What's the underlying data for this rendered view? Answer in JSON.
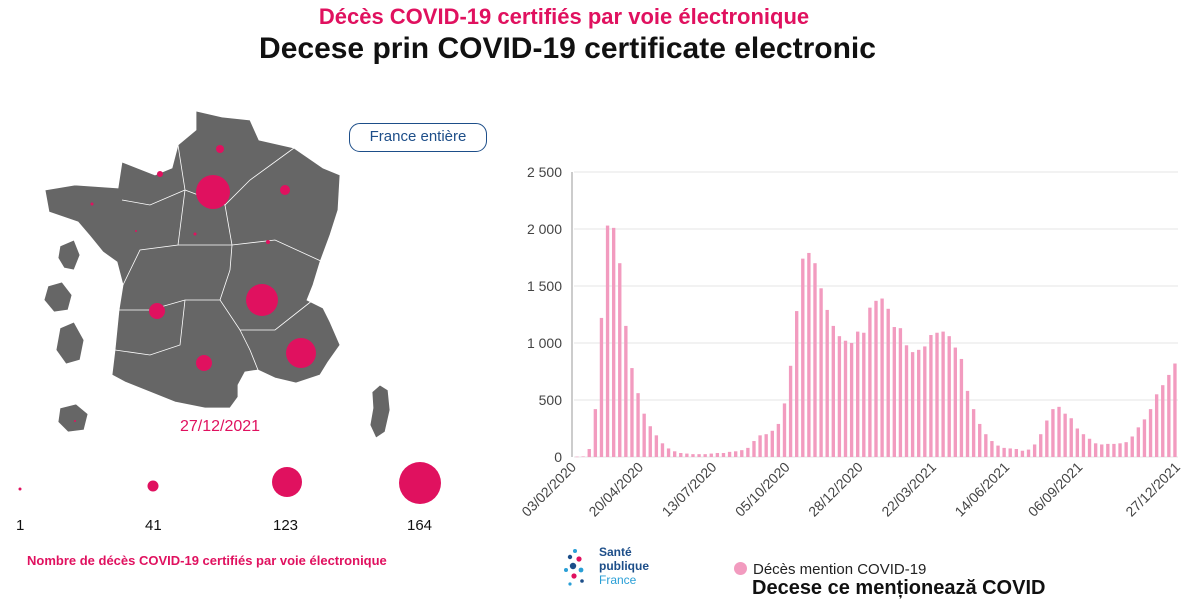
{
  "title_fr": "Décès COVID-19 certifiés par voie électronique",
  "title_ro": "Decese prin COVID-19 certificate electronic",
  "button_label": "France entière",
  "map": {
    "date": "27/12/2021",
    "land_color": "#666666",
    "bubble_color": "#e0115f"
  },
  "size_legend": {
    "values": [
      "1",
      "41",
      "123",
      "164"
    ],
    "caption": "Nombre de décès COVID-19 certifiés par voie électronique"
  },
  "logo": {
    "line1": "Santé",
    "line2": "publique",
    "line3": "France"
  },
  "legend": {
    "series_fr": "Décès mention COVID-19",
    "series_ro": "Decese ce menționează COVID"
  },
  "chart_data": {
    "type": "bar",
    "color": "#f29bbf",
    "ylim": [
      0,
      2500
    ],
    "yticks": [
      0,
      500,
      1000,
      1500,
      2000,
      2500
    ],
    "ytick_labels": [
      "0",
      "500",
      "1 000",
      "1 500",
      "2 000",
      "2 500"
    ],
    "xtick_labels": [
      "03/02/2020",
      "20/04/2020",
      "13/07/2020",
      "05/10/2020",
      "28/12/2020",
      "22/03/2021",
      "14/06/2021",
      "06/09/2021",
      "27/12/2021"
    ],
    "xtick_weeks": [
      0,
      11,
      23,
      35,
      47,
      59,
      71,
      83,
      99
    ],
    "weeks": [
      {
        "v": 3
      },
      {
        "v": 5
      },
      {
        "v": 70
      },
      {
        "v": 420
      },
      {
        "v": 1220
      },
      {
        "v": 2030
      },
      {
        "v": 2010
      },
      {
        "v": 1700
      },
      {
        "v": 1150
      },
      {
        "v": 780
      },
      {
        "v": 560
      },
      {
        "v": 380
      },
      {
        "v": 270
      },
      {
        "v": 190
      },
      {
        "v": 120
      },
      {
        "v": 75
      },
      {
        "v": 50
      },
      {
        "v": 35
      },
      {
        "v": 30
      },
      {
        "v": 25
      },
      {
        "v": 25
      },
      {
        "v": 25
      },
      {
        "v": 30
      },
      {
        "v": 35
      },
      {
        "v": 35
      },
      {
        "v": 45
      },
      {
        "v": 50
      },
      {
        "v": 60
      },
      {
        "v": 80
      },
      {
        "v": 140
      },
      {
        "v": 190
      },
      {
        "v": 200
      },
      {
        "v": 230
      },
      {
        "v": 290
      },
      {
        "v": 470
      },
      {
        "v": 800
      },
      {
        "v": 1280
      },
      {
        "v": 1740
      },
      {
        "v": 1790
      },
      {
        "v": 1700
      },
      {
        "v": 1480
      },
      {
        "v": 1290
      },
      {
        "v": 1150
      },
      {
        "v": 1060
      },
      {
        "v": 1020
      },
      {
        "v": 1000
      },
      {
        "v": 1100
      },
      {
        "v": 1090
      },
      {
        "v": 1310
      },
      {
        "v": 1370
      },
      {
        "v": 1390
      },
      {
        "v": 1300
      },
      {
        "v": 1140
      },
      {
        "v": 1130
      },
      {
        "v": 980
      },
      {
        "v": 920
      },
      {
        "v": 940
      },
      {
        "v": 970
      },
      {
        "v": 1070
      },
      {
        "v": 1090
      },
      {
        "v": 1100
      },
      {
        "v": 1060
      },
      {
        "v": 960
      },
      {
        "v": 860
      },
      {
        "v": 580
      },
      {
        "v": 420
      },
      {
        "v": 290
      },
      {
        "v": 200
      },
      {
        "v": 140
      },
      {
        "v": 100
      },
      {
        "v": 80
      },
      {
        "v": 75
      },
      {
        "v": 70
      },
      {
        "v": 55
      },
      {
        "v": 65
      },
      {
        "v": 110
      },
      {
        "v": 200
      },
      {
        "v": 320
      },
      {
        "v": 420
      },
      {
        "v": 440
      },
      {
        "v": 380
      },
      {
        "v": 340
      },
      {
        "v": 250
      },
      {
        "v": 200
      },
      {
        "v": 160
      },
      {
        "v": 120
      },
      {
        "v": 110
      },
      {
        "v": 115
      },
      {
        "v": 115
      },
      {
        "v": 120
      },
      {
        "v": 130
      },
      {
        "v": 180
      },
      {
        "v": 260
      },
      {
        "v": 330
      },
      {
        "v": 420
      },
      {
        "v": 550
      },
      {
        "v": 630
      },
      {
        "v": 720
      },
      {
        "v": 820
      }
    ]
  }
}
